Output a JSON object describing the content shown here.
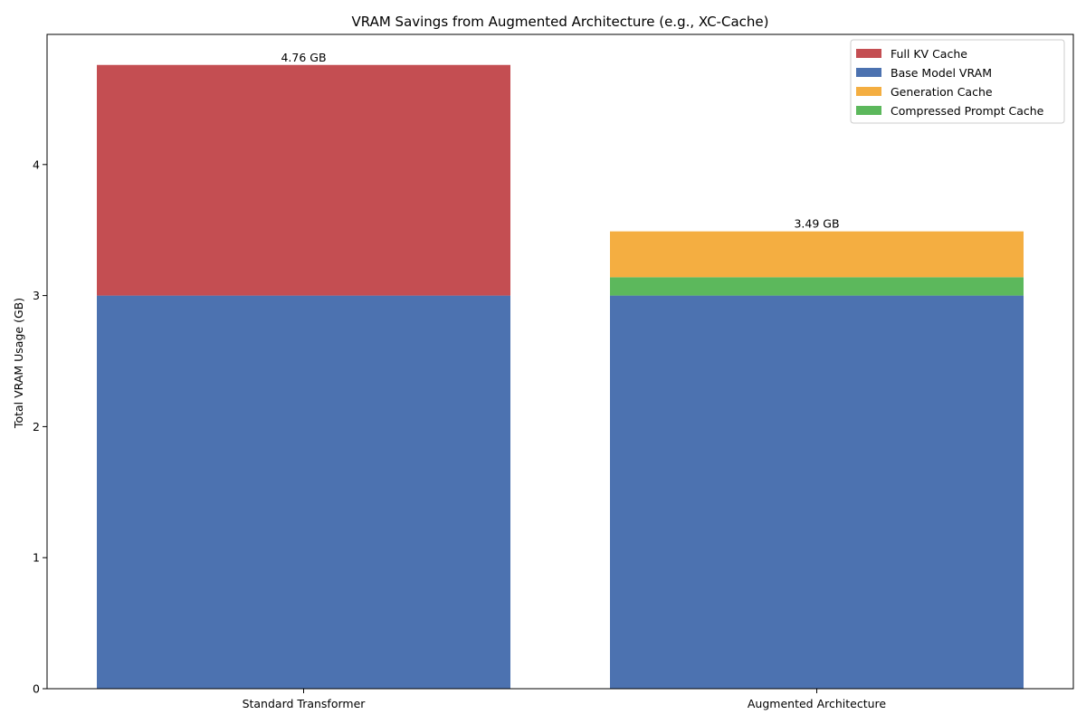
{
  "chart_data": {
    "type": "bar",
    "stacked": true,
    "title": "VRAM Savings from Augmented Architecture (e.g., XC-Cache)",
    "xlabel": "",
    "ylabel": "Total VRAM Usage (GB)",
    "ylim": [
      0,
      5
    ],
    "yticks": [
      "0",
      "1",
      "2",
      "3",
      "4"
    ],
    "grid": false,
    "legend_position": "top-right",
    "categories": [
      "Standard Transformer",
      "Augmented Architecture"
    ],
    "series": [
      {
        "name": "Base Model VRAM",
        "color": "#4c72b0",
        "values": [
          3.0,
          3.0
        ]
      },
      {
        "name": "Full KV Cache",
        "color": "#c44e52",
        "values": [
          1.76,
          0
        ]
      },
      {
        "name": "Compressed Prompt Cache",
        "color": "#5cb85c",
        "values": [
          0,
          0.14
        ]
      },
      {
        "name": "Generation Cache",
        "color": "#f4ae41",
        "values": [
          0,
          0.35
        ]
      }
    ],
    "legend_order": [
      "Full KV Cache",
      "Base Model VRAM",
      "Generation Cache",
      "Compressed Prompt Cache"
    ],
    "totals": [
      4.76,
      3.49
    ],
    "total_labels": [
      "4.76 GB",
      "3.49 GB"
    ]
  }
}
